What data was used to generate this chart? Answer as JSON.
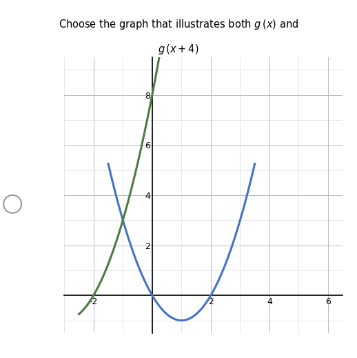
{
  "title_line1": "Choose the graph that illustrates both $g\\,(x)$ and",
  "title_line2": "$g\\,(x + 4)$",
  "xlim": [
    -3,
    6.5
  ],
  "ylim": [
    -1.5,
    9.5
  ],
  "xticks": [
    -2,
    0,
    2,
    4,
    6
  ],
  "yticks": [
    2,
    4,
    6,
    8
  ],
  "blue_color": "#4472C4",
  "green_color": "#4F7942",
  "line_width": 2.2,
  "figsize": [
    5.18,
    5.19
  ],
  "dpi": 100,
  "grid_color": "#BBBBBB",
  "grid_minor_color": "#DDDDDD"
}
